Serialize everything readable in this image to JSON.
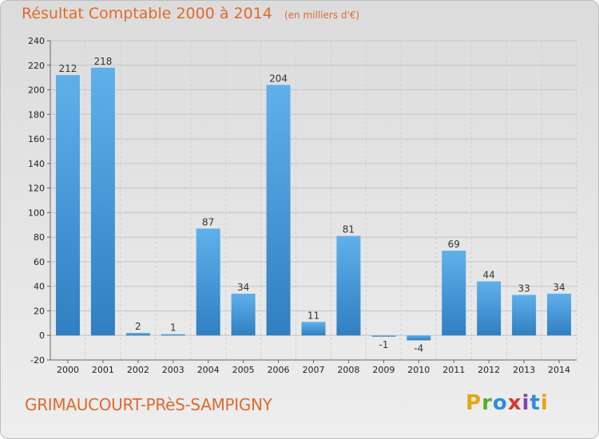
{
  "chart_data": {
    "type": "bar",
    "title": "Résultat Comptable 2000 à 2014",
    "subtitle": "(en milliers d'€)",
    "categories": [
      "2000",
      "2001",
      "2002",
      "2003",
      "2004",
      "2005",
      "2006",
      "2007",
      "2008",
      "2009",
      "2010",
      "2011",
      "2012",
      "2013",
      "2014"
    ],
    "values": [
      212,
      218,
      2,
      1,
      87,
      34,
      204,
      11,
      81,
      -1,
      -4,
      69,
      44,
      33,
      34
    ],
    "value_labels": [
      "212",
      "218",
      "2",
      "1",
      "87",
      "34",
      "204",
      "11",
      "81",
      "-1",
      "-4",
      "69",
      "44",
      "33",
      "34"
    ],
    "ylim": [
      -20,
      240
    ],
    "yticks": [
      -20,
      0,
      20,
      40,
      60,
      80,
      100,
      120,
      140,
      160,
      180,
      200,
      220,
      240
    ],
    "grid": true,
    "bar_color": "#4e9fdf"
  },
  "footer": {
    "commune": "GRIMAUCOURT-PRèS-SAMPIGNY"
  },
  "logo": {
    "letters": [
      "P",
      "r",
      "o",
      "x",
      "i",
      "t",
      "i"
    ],
    "colors": [
      "#e8a317",
      "#5aab2d",
      "#2f8fd8",
      "#d83b2a",
      "#8a3fb0",
      "#2f8fd8",
      "#e8a317"
    ]
  }
}
